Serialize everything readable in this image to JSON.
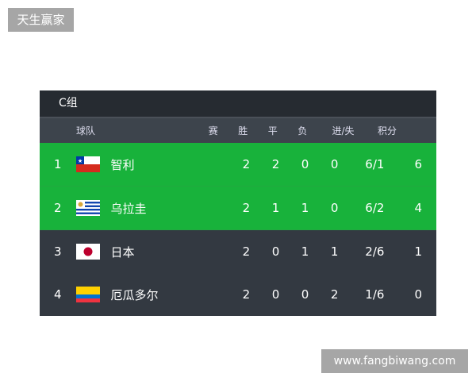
{
  "watermarks": {
    "top_left": "天生赢家",
    "bottom_right": "www.fangbiwang.com"
  },
  "group_title": "C组",
  "headers": {
    "team": "球队",
    "played": "赛",
    "won": "胜",
    "drawn": "平",
    "lost": "负",
    "goals": "进/失",
    "points": "积分"
  },
  "colors": {
    "qualified": "#18b23b",
    "default": "#333941"
  },
  "rows": [
    {
      "rank": "1",
      "flag": "chile-flag",
      "team": "智利",
      "played": "2",
      "won": "2",
      "drawn": "0",
      "lost": "0",
      "goals": "6/1",
      "points": "6",
      "qualified": true
    },
    {
      "rank": "2",
      "flag": "uruguay-flag",
      "team": "乌拉圭",
      "played": "2",
      "won": "1",
      "drawn": "1",
      "lost": "0",
      "goals": "6/2",
      "points": "4",
      "qualified": true
    },
    {
      "rank": "3",
      "flag": "japan-flag",
      "team": "日本",
      "played": "2",
      "won": "0",
      "drawn": "1",
      "lost": "1",
      "goals": "2/6",
      "points": "1",
      "qualified": false
    },
    {
      "rank": "4",
      "flag": "ecuador-flag",
      "team": "厄瓜多尔",
      "played": "2",
      "won": "0",
      "drawn": "0",
      "lost": "2",
      "goals": "1/6",
      "points": "0",
      "qualified": false
    }
  ]
}
